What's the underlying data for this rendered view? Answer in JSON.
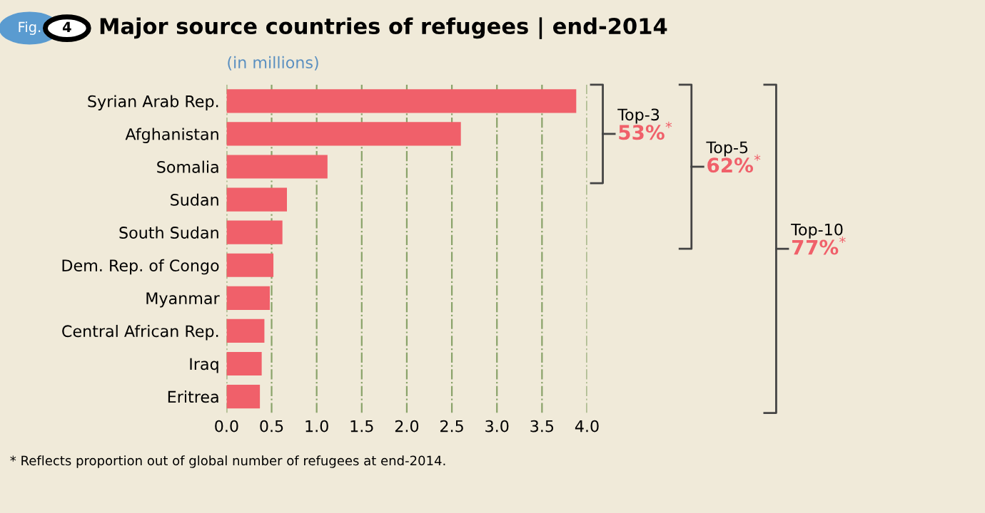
{
  "chart_data": {
    "type": "bar",
    "orientation": "horizontal",
    "title": "Major source countries of refugees | end-2014",
    "xlabel": "(in millions)",
    "categories": [
      "Syrian Arab Rep.",
      "Afghanistan",
      "Somalia",
      "Sudan",
      "South Sudan",
      "Dem. Rep. of Congo",
      "Myanmar",
      "Central African Rep.",
      "Iraq",
      "Eritrea"
    ],
    "values": [
      3.88,
      2.6,
      1.12,
      0.67,
      0.62,
      0.52,
      0.48,
      0.42,
      0.39,
      0.37
    ],
    "color": "#f0606a",
    "xlim": [
      0,
      4
    ],
    "xticks": [
      {
        "value": 0,
        "label": "0.0"
      },
      0.5,
      {
        "value": 1,
        "label": "1.0"
      },
      1.5,
      {
        "value": 2,
        "label": "2.0"
      },
      2.5,
      {
        "value": 3,
        "label": "3.0"
      },
      3.5,
      {
        "value": 4,
        "label": "4.0"
      }
    ],
    "grid": "x",
    "annotations": [
      "Fig.",
      "4",
      "Top-3",
      "53%$^{*}$",
      "Top-5",
      "62%$^{*}$",
      "Top-10",
      "77%$^{*}$",
      "* Reflects proportion out of global number of refugees at end-2014."
    ]
  }
}
